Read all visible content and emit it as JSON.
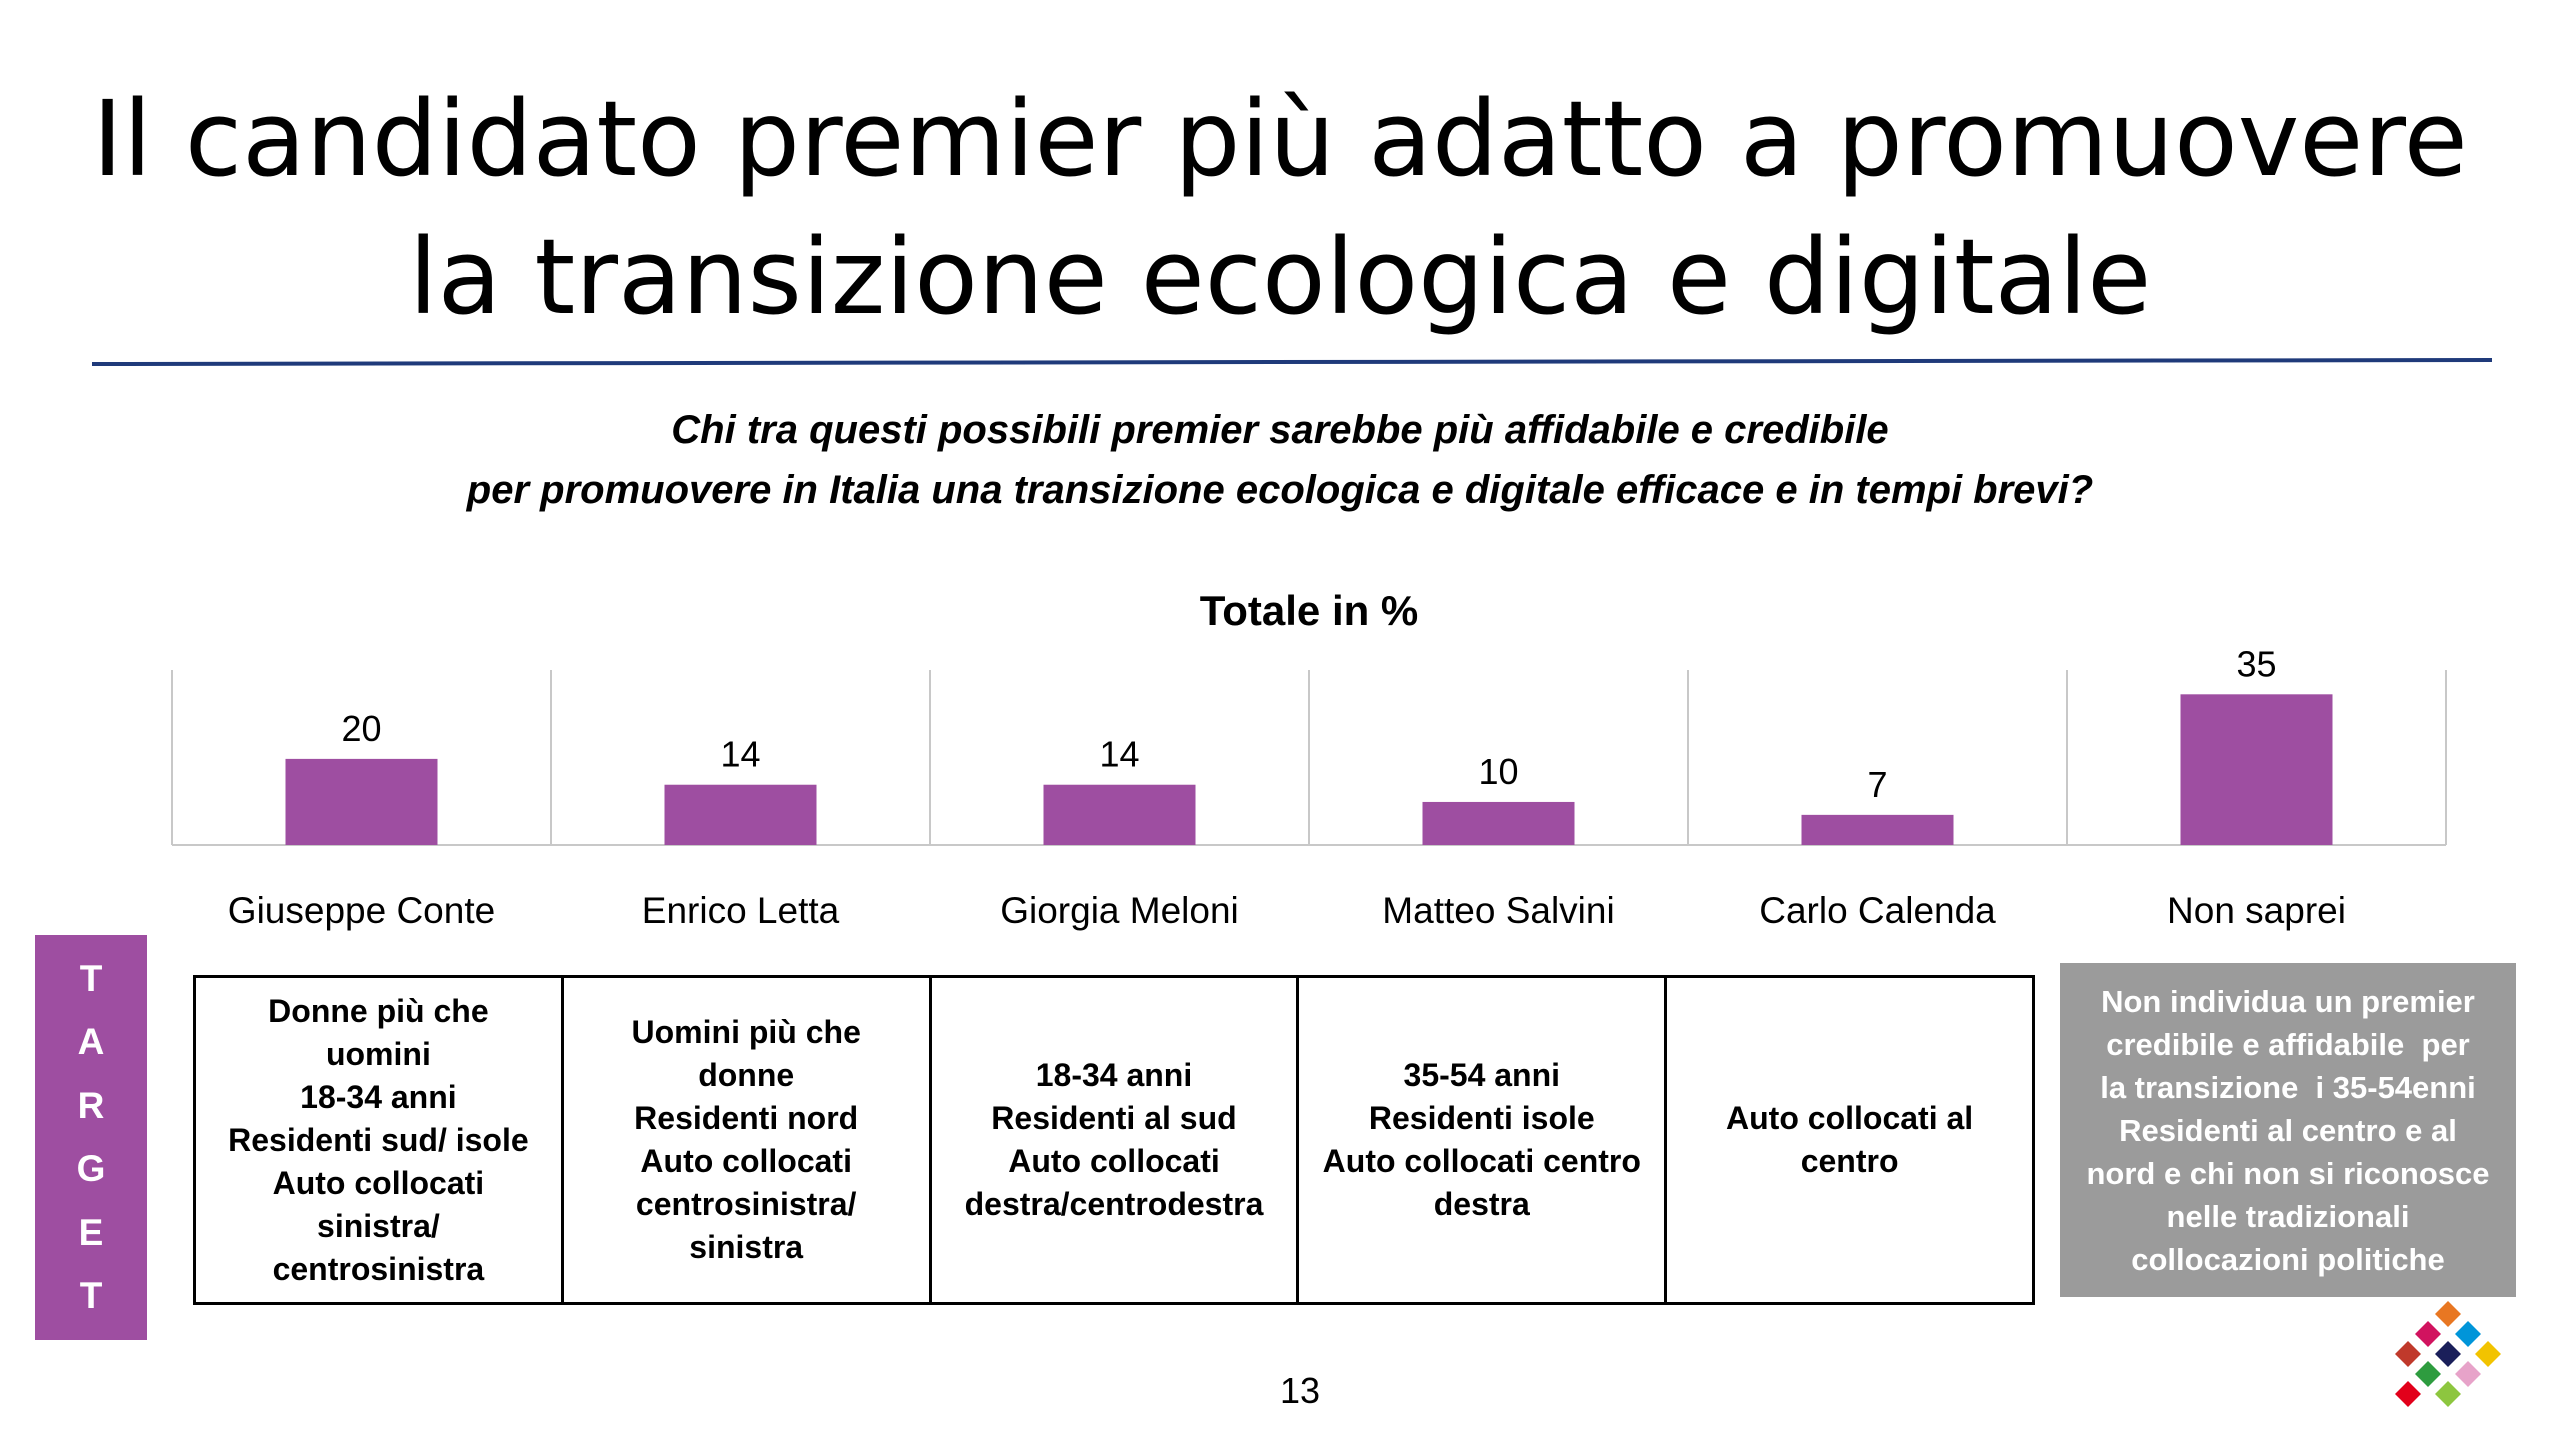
{
  "title": {
    "line1": "Il candidato premier più adatto a promuovere",
    "line2": "la transizione ecologica e digitale"
  },
  "subtitle": {
    "line1": "Chi tra questi possibili premier sarebbe più affidabile e credibile",
    "line2": "per promuovere in Italia una transizione ecologica e digitale efficace e in tempi brevi?"
  },
  "colors": {
    "bar": "#9e4ea1",
    "rule": "#1f3a7a",
    "grid": "#c8c8c8",
    "target_bar": "#9e4ea1",
    "non_box": "#9b9b9b"
  },
  "chart_data": {
    "type": "bar",
    "title": "Totale in %",
    "categories": [
      "Giuseppe Conte",
      "Enrico Letta",
      "Giorgia Meloni",
      "Matteo Salvini",
      "Carlo Calenda",
      "Non saprei"
    ],
    "values": [
      20,
      14,
      14,
      10,
      7,
      35
    ],
    "data_labels": [
      "20",
      "14",
      "14",
      "10",
      "7",
      "35"
    ],
    "xlabel": "",
    "ylabel": "",
    "ylim": [
      0,
      36
    ],
    "grid": "vertical category separators"
  },
  "target": {
    "label_letters": [
      "T",
      "A",
      "R",
      "G",
      "E",
      "T"
    ],
    "cells": [
      [
        "Donne più che",
        "uomini",
        "18-34 anni",
        "Residenti sud/ isole",
        "Auto collocati",
        "sinistra/",
        "centrosinistra"
      ],
      [
        "Uomini più che",
        "donne",
        "Residenti nord",
        "Auto collocati",
        "centrosinistra/",
        "sinistra"
      ],
      [
        "18-34 anni",
        "Residenti al sud",
        "Auto collocati",
        "destra/centrodestra"
      ],
      [
        "35-54 anni",
        "Residenti isole",
        "Auto collocati centro",
        "destra"
      ],
      [
        "Auto collocati al",
        "centro"
      ]
    ],
    "non_saprei": [
      "Non individua un premier",
      "credibile e affidabile  per",
      "la transizione  i 35-54enni",
      "Residenti al centro e al",
      "nord e chi non si riconosce",
      "nelle tradizionali",
      "collocazioni politiche"
    ]
  },
  "page_number": "13",
  "logo": {
    "name": "diamond-mosaic-logo",
    "colors": [
      "#e87722",
      "#c0392b",
      "#0095d9",
      "#d1135f",
      "#1a1f5a",
      "#2e9c3f",
      "#f2c300",
      "#e7a3c9",
      "#8dc63f",
      "#e2001a"
    ]
  }
}
